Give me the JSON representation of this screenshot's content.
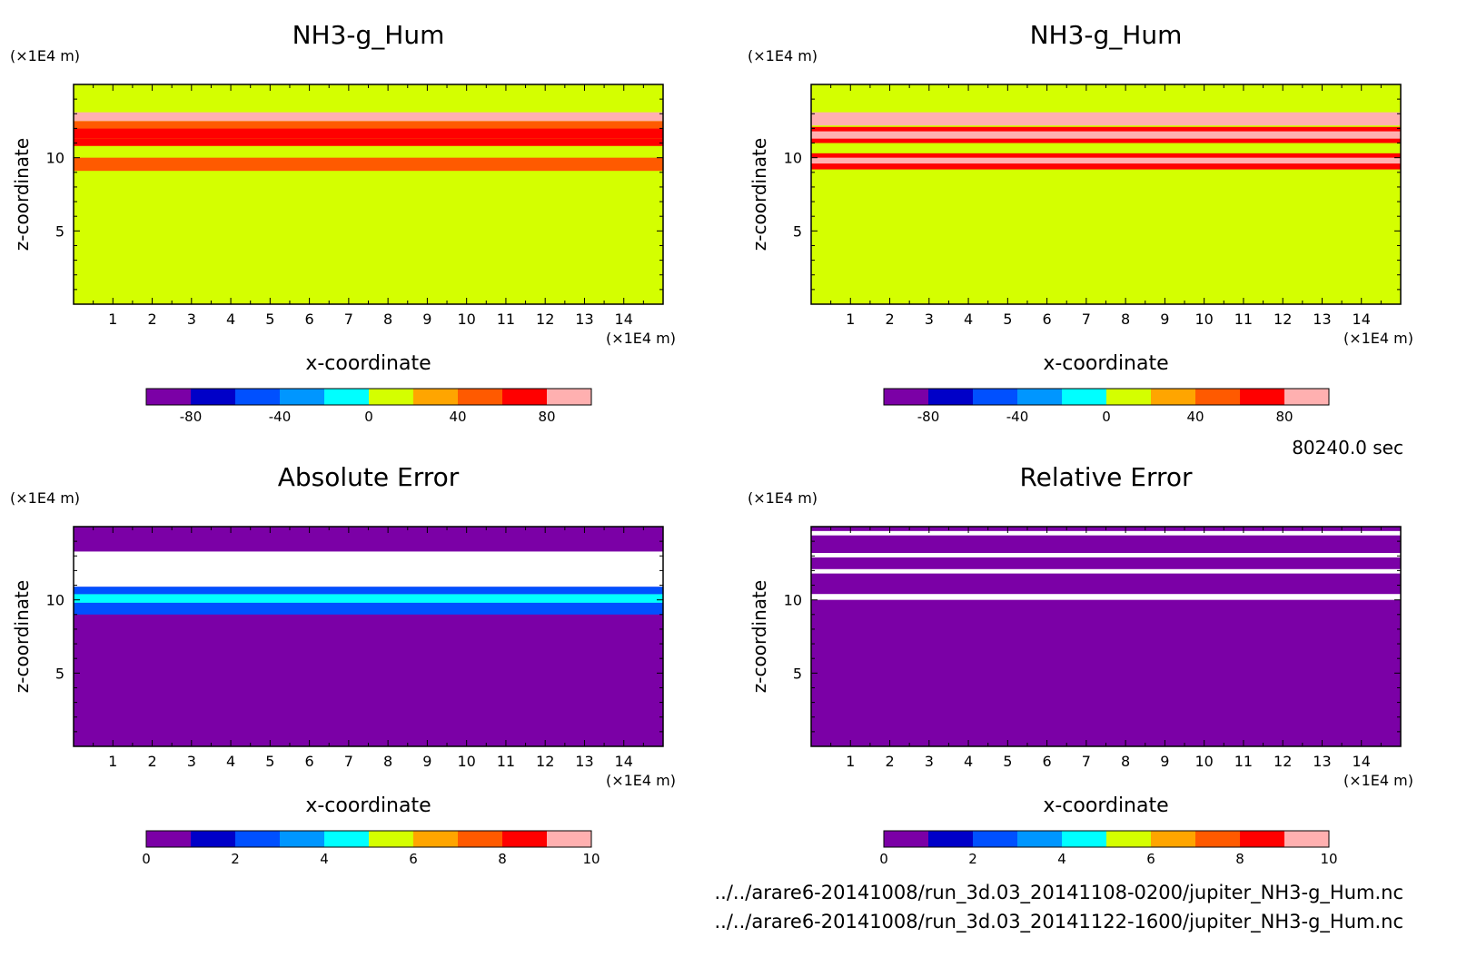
{
  "time_label": "80240.0 sec",
  "files": [
    "../../arare6-20141008/run_3d.03_20141108-0200/jupiter_NH3-g_Hum.nc",
    "../../arare6-20141008/run_3d.03_20141122-1600/jupiter_NH3-g_Hum.nc"
  ],
  "chart_data": [
    {
      "type": "heatmap",
      "title": "NH3-g_Hum",
      "xlabel": "x-coordinate",
      "ylabel": "z-coordinate",
      "x_unit": "(×1E4 m)",
      "y_unit": "(×1E4 m)",
      "xlim": [
        0,
        15
      ],
      "ylim": [
        0,
        15
      ],
      "x_ticks": [
        1,
        2,
        3,
        4,
        5,
        6,
        7,
        8,
        9,
        10,
        11,
        12,
        13,
        14
      ],
      "y_ticks": [
        5,
        10
      ],
      "background_level": 0,
      "bands": [
        {
          "z": [
            9.1,
            10.0
          ],
          "level": 40
        },
        {
          "z": [
            10.8,
            11.3
          ],
          "level": 60
        },
        {
          "z": [
            11.3,
            12.0
          ],
          "level": 70
        },
        {
          "z": [
            12.0,
            12.5
          ],
          "level": 40
        },
        {
          "z": [
            12.5,
            13.1
          ],
          "level": 80
        },
        {
          "z": [
            12.7,
            12.9
          ],
          "level": 90
        }
      ],
      "colorbar": {
        "ticks": [
          -80,
          -40,
          0,
          40,
          80
        ],
        "range": [
          -100,
          100
        ],
        "colors": [
          "#7b00a6",
          "#0000c8",
          "#0050ff",
          "#0096ff",
          "#00ffff",
          "#d4ff00",
          "#ffa500",
          "#ff5a00",
          "#ff0000",
          "#ffb0b0"
        ]
      }
    },
    {
      "type": "heatmap",
      "title": "NH3-g_Hum",
      "xlabel": "x-coordinate",
      "ylabel": "z-coordinate",
      "x_unit": "(×1E4 m)",
      "y_unit": "(×1E4 m)",
      "xlim": [
        0,
        15
      ],
      "ylim": [
        0,
        15
      ],
      "x_ticks": [
        1,
        2,
        3,
        4,
        5,
        6,
        7,
        8,
        9,
        10,
        11,
        12,
        13,
        14
      ],
      "y_ticks": [
        5,
        10
      ],
      "background_level": 0,
      "bands": [
        {
          "z": [
            9.2,
            10.3
          ],
          "level": 60
        },
        {
          "z": [
            9.6,
            10.0
          ],
          "level": 80
        },
        {
          "z": [
            11.0,
            12.1
          ],
          "level": 70
        },
        {
          "z": [
            11.3,
            11.8
          ],
          "level": 90
        },
        {
          "z": [
            12.2,
            13.1
          ],
          "level": 80
        },
        {
          "z": [
            12.5,
            12.9
          ],
          "level": 90
        }
      ],
      "colorbar": {
        "ticks": [
          -80,
          -40,
          0,
          40,
          80
        ],
        "range": [
          -100,
          100
        ],
        "colors": [
          "#7b00a6",
          "#0000c8",
          "#0050ff",
          "#0096ff",
          "#00ffff",
          "#d4ff00",
          "#ffa500",
          "#ff5a00",
          "#ff0000",
          "#ffb0b0"
        ]
      }
    },
    {
      "type": "heatmap",
      "title": "Absolute Error",
      "xlabel": "x-coordinate",
      "ylabel": "z-coordinate",
      "x_unit": "(×1E4 m)",
      "y_unit": "(×1E4 m)",
      "xlim": [
        0,
        15
      ],
      "ylim": [
        0,
        15
      ],
      "x_ticks": [
        1,
        2,
        3,
        4,
        5,
        6,
        7,
        8,
        9,
        10,
        11,
        12,
        13,
        14
      ],
      "y_ticks": [
        5,
        10
      ],
      "background_level": 0.5,
      "bands": [
        {
          "z": [
            9.0,
            9.8
          ],
          "level": 2.5
        },
        {
          "z": [
            9.8,
            10.4
          ],
          "level": 4.5
        },
        {
          "z": [
            10.4,
            10.9
          ],
          "level": 2.5
        },
        {
          "z": [
            10.9,
            13.3
          ],
          "level": 11
        }
      ],
      "colorbar": {
        "ticks": [
          0,
          2,
          4,
          6,
          8,
          10
        ],
        "range": [
          0,
          10
        ],
        "colors": [
          "#7b00a6",
          "#0000c8",
          "#0050ff",
          "#0096ff",
          "#00ffff",
          "#d4ff00",
          "#ffa500",
          "#ff5a00",
          "#ff0000",
          "#ffb0b0"
        ]
      }
    },
    {
      "type": "heatmap",
      "title": "Relative Error",
      "xlabel": "x-coordinate",
      "ylabel": "z-coordinate",
      "x_unit": "(×1E4 m)",
      "y_unit": "(×1E4 m)",
      "xlim": [
        0,
        15
      ],
      "ylim": [
        0,
        15
      ],
      "x_ticks": [
        1,
        2,
        3,
        4,
        5,
        6,
        7,
        8,
        9,
        10,
        11,
        12,
        13,
        14
      ],
      "y_ticks": [
        5,
        10
      ],
      "background_level": 0.5,
      "bands": [
        {
          "z": [
            10.0,
            10.4
          ],
          "level": 11
        },
        {
          "z": [
            11.8,
            12.1
          ],
          "level": 11
        },
        {
          "z": [
            12.9,
            13.2
          ],
          "level": 11
        },
        {
          "z": [
            14.4,
            14.7
          ],
          "level": 11
        }
      ],
      "colorbar": {
        "ticks": [
          0,
          2,
          4,
          6,
          8,
          10
        ],
        "range": [
          0,
          10
        ],
        "colors": [
          "#7b00a6",
          "#0000c8",
          "#0050ff",
          "#0096ff",
          "#00ffff",
          "#d4ff00",
          "#ffa500",
          "#ff5a00",
          "#ff0000",
          "#ffb0b0"
        ]
      }
    }
  ]
}
